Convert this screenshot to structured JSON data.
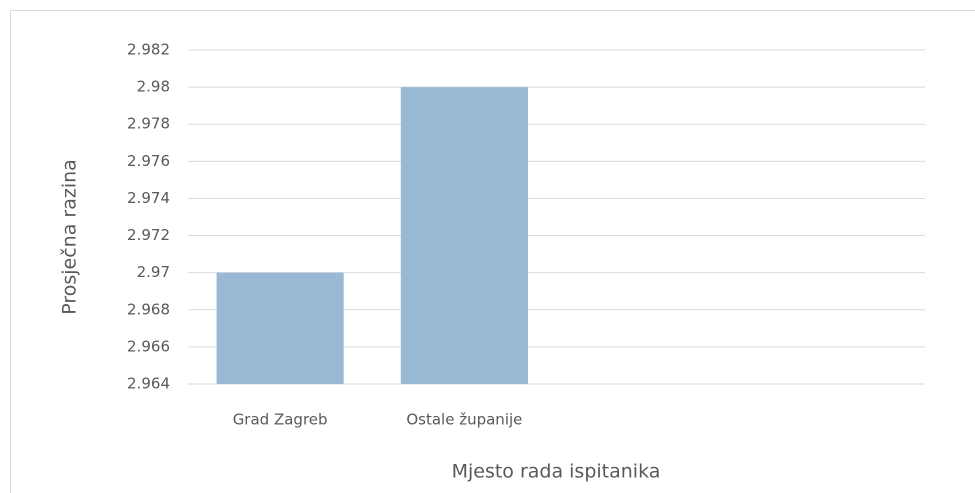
{
  "chart_data": {
    "type": "bar",
    "x_label": "Mjesto rada ispitanika",
    "y_label": "Prosječna razina",
    "categories": [
      "Grad Zagreb",
      "Ostale županije",
      null,
      null
    ],
    "values": [
      2.97,
      2.98,
      null,
      null
    ],
    "color": "#98b8d4",
    "ylim": [
      2.964,
      2.982
    ],
    "yticks": [
      2.964,
      2.966,
      2.968,
      2.97,
      2.972,
      2.974,
      2.976,
      2.978,
      2.98,
      2.982
    ],
    "grid": true
  }
}
